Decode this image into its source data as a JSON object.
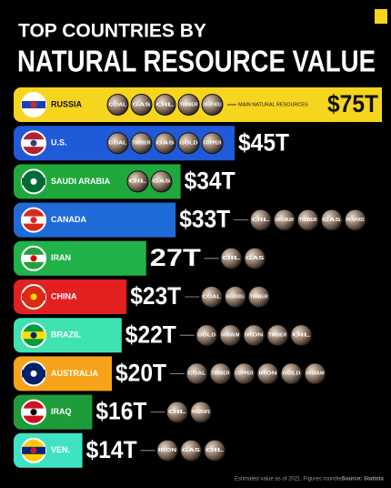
{
  "chart_data": {
    "type": "bar",
    "title": "TOP COUNTRIES BY",
    "subtitle": "NATURAL RESOURCE VALUE",
    "categories": [
      "RUSSIA",
      "U.S.",
      "SAUDI ARABIA",
      "CANADA",
      "IRAN",
      "CHINA",
      "BRAZIL",
      "AUSTRALIA",
      "IRAQ",
      "VEN."
    ],
    "values": [
      75,
      45,
      34,
      33,
      27,
      23,
      22,
      20,
      16,
      14
    ],
    "value_labels": [
      "$75T",
      "$45T",
      "$34T",
      "$33T",
      "27T",
      "$23T",
      "$22T",
      "$20T",
      "$16T",
      "$14T"
    ],
    "colors": [
      "#f6d51f",
      "#1f5ad8",
      "#1fa83c",
      "#1f6cd8",
      "#22b24a",
      "#e2201f",
      "#3fe3b2",
      "#f6a31a",
      "#1e9c3c",
      "#3fe3c4"
    ],
    "resources": [
      [
        "COAL",
        "GAS",
        "OIL",
        "TIMBER",
        "RARE EARTH METALS"
      ],
      [
        "COAL",
        "TIMBER",
        "GAS",
        "GOLD",
        "COPPER"
      ],
      [
        "OIL",
        "GAS"
      ],
      [
        "OIL",
        "URANIUM",
        "TIMBER",
        "GAS",
        "PHOSPHATE"
      ],
      [
        "OIL",
        "GAS"
      ],
      [
        "COAL",
        "RARE EARTH METALS",
        "TIMBER"
      ],
      [
        "GOLD",
        "URANIUM",
        "IRON",
        "TIMBER",
        "OIL"
      ],
      [
        "COAL",
        "TIMBER",
        "COPPER",
        "IRON",
        "GOLD",
        "URANIUM"
      ],
      [
        "OIL",
        "PHOSPHATE"
      ],
      [
        "IRON",
        "GAS",
        "OIL"
      ]
    ],
    "annotation": "MAIN NATURAL RESOURCES",
    "footnote": "Estimated value as of 2021. Figures rounded.",
    "source": "Source: Statista"
  }
}
